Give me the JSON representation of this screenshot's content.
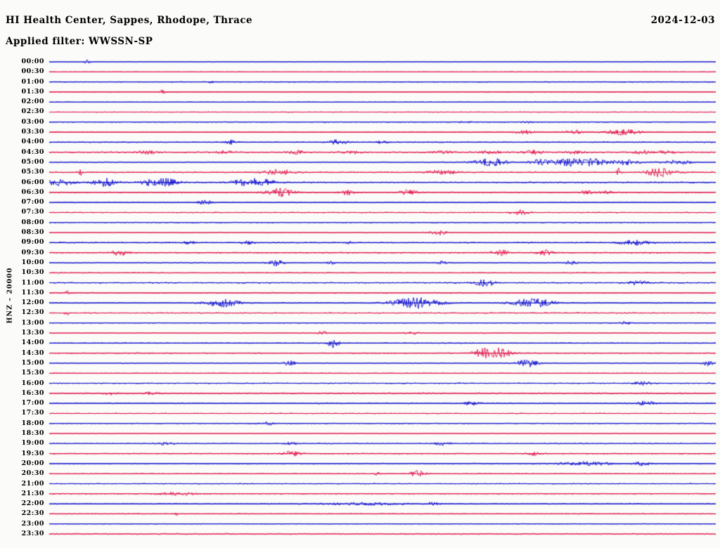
{
  "header": {
    "title": "HI Health Center, Sappes, Rhodope, Thrace",
    "date": "2024-12-03",
    "filter_line": "Applied filter: WWSSN-SP"
  },
  "axis": {
    "left_label": "HNZ – 20000"
  },
  "chart_data": {
    "type": "line",
    "subtype": "helicorder-seismogram",
    "title": "HI Health Center, Sappes, Rhodope, Thrace",
    "date": "2024-12-03",
    "filter": "WWSSN-SP",
    "channel_scale_label": "HNZ – 20000",
    "row_duration_minutes": 30,
    "x_range_minutes": [
      0,
      30
    ],
    "grid": false,
    "legend": "none",
    "colors": {
      "hour": "#0d0dcd",
      "half_hour": "#e01248"
    },
    "ev_format": "[minute_in_row, amplitude_px, sigma_minutes]",
    "rows": [
      {
        "t": "00:00",
        "c": "hour",
        "n": 0.4,
        "ev": [
          [
            1.7,
            2.5,
            0.12
          ]
        ]
      },
      {
        "t": "00:30",
        "c": "half_hour",
        "n": 0.4,
        "ev": []
      },
      {
        "t": "01:00",
        "c": "hour",
        "n": 0.45,
        "ev": [
          [
            7.3,
            1.5,
            0.1
          ]
        ]
      },
      {
        "t": "01:30",
        "c": "half_hour",
        "n": 0.45,
        "ev": [
          [
            5.1,
            4,
            0.08
          ]
        ]
      },
      {
        "t": "02:00",
        "c": "hour",
        "n": 0.4,
        "ev": []
      },
      {
        "t": "02:30",
        "c": "half_hour",
        "n": 0.4,
        "ev": []
      },
      {
        "t": "03:00",
        "c": "hour",
        "n": 0.55,
        "ev": [
          [
            18.7,
            1.5,
            0.2
          ],
          [
            21.5,
            1.5,
            0.2
          ]
        ]
      },
      {
        "t": "03:30",
        "c": "half_hour",
        "n": 0.6,
        "ev": [
          [
            21.4,
            2.5,
            0.3
          ],
          [
            23.6,
            3.5,
            0.25
          ],
          [
            25.8,
            4.5,
            0.5
          ]
        ]
      },
      {
        "t": "04:00",
        "c": "hour",
        "n": 0.6,
        "ev": [
          [
            8.2,
            3,
            0.2
          ],
          [
            13.0,
            3.5,
            0.3
          ],
          [
            15.0,
            2,
            0.2
          ]
        ]
      },
      {
        "t": "04:30",
        "c": "half_hour",
        "n": 0.9,
        "ev": [
          [
            4.4,
            2.5,
            0.3
          ],
          [
            7.9,
            2,
            0.3
          ],
          [
            11.1,
            2.5,
            0.3
          ],
          [
            13.6,
            2,
            0.3
          ],
          [
            17.7,
            2,
            0.3
          ],
          [
            19.9,
            2.5,
            0.3
          ],
          [
            21.8,
            2.5,
            0.3
          ],
          [
            23.7,
            2.5,
            0.3
          ],
          [
            26.7,
            2.5,
            0.3
          ],
          [
            27.8,
            2,
            0.3
          ]
        ]
      },
      {
        "t": "05:00",
        "c": "hour",
        "n": 0.75,
        "ev": [
          [
            19.9,
            5.5,
            0.5
          ],
          [
            22.1,
            4.5,
            0.3
          ],
          [
            23.4,
            5.5,
            0.5
          ],
          [
            24.5,
            5,
            0.4
          ],
          [
            25.9,
            4,
            0.35
          ],
          [
            28.3,
            3,
            0.4
          ]
        ]
      },
      {
        "t": "05:30",
        "c": "half_hour",
        "n": 0.8,
        "ev": [
          [
            1.4,
            4,
            0.07
          ],
          [
            10.3,
            4,
            0.5
          ],
          [
            17.7,
            3,
            0.5
          ],
          [
            25.6,
            6,
            0.08
          ],
          [
            27.5,
            6,
            0.45
          ]
        ]
      },
      {
        "t": "06:00",
        "c": "hour",
        "n": 0.85,
        "ev": [
          [
            0.5,
            4.5,
            0.45
          ],
          [
            2.5,
            5.5,
            0.35
          ],
          [
            4.4,
            3.5,
            0.25
          ],
          [
            5.2,
            5.5,
            0.4
          ],
          [
            9.0,
            5.5,
            0.5
          ],
          [
            9.9,
            4.5,
            0.25
          ]
        ]
      },
      {
        "t": "06:30",
        "c": "half_hour",
        "n": 0.8,
        "ev": [
          [
            10.4,
            5.5,
            0.45
          ],
          [
            13.4,
            3.5,
            0.25
          ],
          [
            16.2,
            3.5,
            0.3
          ],
          [
            24.2,
            2.5,
            0.2
          ],
          [
            25.1,
            2.5,
            0.2
          ]
        ]
      },
      {
        "t": "07:00",
        "c": "hour",
        "n": 0.65,
        "ev": [
          [
            7.0,
            3.5,
            0.2
          ]
        ]
      },
      {
        "t": "07:30",
        "c": "half_hour",
        "n": 0.65,
        "ev": [
          [
            21.2,
            3.5,
            0.25
          ]
        ]
      },
      {
        "t": "08:00",
        "c": "hour",
        "n": 0.6,
        "ev": []
      },
      {
        "t": "08:30",
        "c": "half_hour",
        "n": 0.7,
        "ev": [
          [
            17.5,
            3.5,
            0.25
          ]
        ]
      },
      {
        "t": "09:00",
        "c": "hour",
        "n": 0.7,
        "ev": [
          [
            6.3,
            2.5,
            0.2
          ],
          [
            8.9,
            2.5,
            0.2
          ],
          [
            13.5,
            4,
            0.1
          ],
          [
            26.3,
            3.5,
            0.5
          ]
        ]
      },
      {
        "t": "09:30",
        "c": "half_hour",
        "n": 0.7,
        "ev": [
          [
            3.2,
            4.5,
            0.25
          ],
          [
            20.3,
            4.5,
            0.25
          ],
          [
            22.3,
            3.5,
            0.25
          ]
        ]
      },
      {
        "t": "10:00",
        "c": "hour",
        "n": 0.7,
        "ev": [
          [
            10.2,
            4.5,
            0.25
          ],
          [
            12.7,
            2,
            0.15
          ],
          [
            17.7,
            2,
            0.2
          ],
          [
            23.5,
            2.5,
            0.2
          ]
        ]
      },
      {
        "t": "10:30",
        "c": "half_hour",
        "n": 0.7,
        "ev": []
      },
      {
        "t": "11:00",
        "c": "hour",
        "n": 0.75,
        "ev": [
          [
            19.6,
            5.5,
            0.3
          ],
          [
            26.5,
            3.5,
            0.3
          ]
        ]
      },
      {
        "t": "11:30",
        "c": "half_hour",
        "n": 0.7,
        "ev": [
          [
            0.8,
            3,
            0.07
          ]
        ]
      },
      {
        "t": "12:00",
        "c": "hour",
        "n": 0.75,
        "ev": [
          [
            7.8,
            5.5,
            0.55
          ],
          [
            16.5,
            7.5,
            0.8
          ],
          [
            21.8,
            6.5,
            0.6
          ]
        ]
      },
      {
        "t": "12:30",
        "c": "half_hour",
        "n": 0.7,
        "ev": [
          [
            0.8,
            3.5,
            0.07
          ]
        ]
      },
      {
        "t": "13:00",
        "c": "hour",
        "n": 0.5,
        "ev": [
          [
            25.9,
            2.5,
            0.2
          ]
        ]
      },
      {
        "t": "13:30",
        "c": "half_hour",
        "n": 0.6,
        "ev": [
          [
            12.3,
            2.5,
            0.2
          ],
          [
            16.3,
            2,
            0.2
          ]
        ]
      },
      {
        "t": "14:00",
        "c": "hour",
        "n": 0.6,
        "ev": [
          [
            12.8,
            6.5,
            0.18
          ]
        ]
      },
      {
        "t": "14:30",
        "c": "half_hour",
        "n": 0.65,
        "ev": [
          [
            19.5,
            6.5,
            0.3
          ],
          [
            20.3,
            7,
            0.35
          ]
        ]
      },
      {
        "t": "15:00",
        "c": "hour",
        "n": 0.65,
        "ev": [
          [
            10.8,
            3.5,
            0.2
          ],
          [
            21.5,
            5.5,
            0.35
          ],
          [
            29.6,
            3.5,
            0.2
          ]
        ]
      },
      {
        "t": "15:30",
        "c": "half_hour",
        "n": 0.6,
        "ev": []
      },
      {
        "t": "16:00",
        "c": "hour",
        "n": 0.7,
        "ev": [
          [
            26.7,
            2.5,
            0.3
          ]
        ]
      },
      {
        "t": "16:30",
        "c": "half_hour",
        "n": 0.95,
        "ev": [
          [
            2.7,
            2,
            0.2
          ],
          [
            4.6,
            2,
            0.2
          ]
        ]
      },
      {
        "t": "17:00",
        "c": "hour",
        "n": 0.75,
        "ev": [
          [
            19.0,
            2.5,
            0.25
          ],
          [
            26.9,
            3.5,
            0.3
          ]
        ]
      },
      {
        "t": "17:30",
        "c": "half_hour",
        "n": 0.55,
        "ev": []
      },
      {
        "t": "18:00",
        "c": "hour",
        "n": 0.65,
        "ev": [
          [
            9.8,
            2.5,
            0.2
          ]
        ]
      },
      {
        "t": "18:30",
        "c": "half_hour",
        "n": 0.55,
        "ev": []
      },
      {
        "t": "19:00",
        "c": "hour",
        "n": 0.65,
        "ev": [
          [
            5.2,
            2.5,
            0.25
          ],
          [
            10.9,
            2,
            0.2
          ],
          [
            17.7,
            2.5,
            0.25
          ]
        ]
      },
      {
        "t": "19:30",
        "c": "half_hour",
        "n": 0.65,
        "ev": [
          [
            10.9,
            3.5,
            0.3
          ],
          [
            21.8,
            2.5,
            0.2
          ]
        ]
      },
      {
        "t": "20:00",
        "c": "hour",
        "n": 0.75,
        "ev": [
          [
            24.2,
            2.5,
            0.8
          ],
          [
            26.7,
            2.5,
            0.25
          ]
        ]
      },
      {
        "t": "20:30",
        "c": "half_hour",
        "n": 0.6,
        "ev": [
          [
            14.8,
            2.5,
            0.12
          ],
          [
            16.6,
            4.5,
            0.25
          ]
        ]
      },
      {
        "t": "21:00",
        "c": "hour",
        "n": 0.55,
        "ev": []
      },
      {
        "t": "21:30",
        "c": "half_hour",
        "n": 0.7,
        "ev": [
          [
            5.7,
            2.5,
            0.6
          ]
        ]
      },
      {
        "t": "22:00",
        "c": "hour",
        "n": 0.65,
        "ev": [
          [
            14.2,
            2,
            1.2
          ],
          [
            17.3,
            2.5,
            0.2
          ]
        ]
      },
      {
        "t": "22:30",
        "c": "half_hour",
        "n": 0.5,
        "ev": [
          [
            5.7,
            3,
            0.06
          ]
        ]
      },
      {
        "t": "23:00",
        "c": "hour",
        "n": 0.45,
        "ev": []
      },
      {
        "t": "23:30",
        "c": "half_hour",
        "n": 0.95,
        "ev": []
      }
    ]
  }
}
